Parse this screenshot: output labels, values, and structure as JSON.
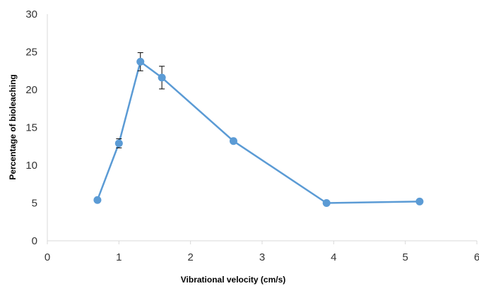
{
  "chart_data": {
    "type": "scatter",
    "title": "",
    "xlabel": "Vibrational velocity (cm/s)",
    "ylabel": "Percentage of bioleaching",
    "xlim": [
      0,
      6
    ],
    "ylim": [
      0,
      30
    ],
    "x_ticks": [
      0,
      1,
      2,
      3,
      4,
      5,
      6
    ],
    "y_ticks": [
      0,
      5,
      10,
      15,
      20,
      25,
      30
    ],
    "x_tick_labels": [
      "0",
      "1",
      "2",
      "3",
      "4",
      "5",
      "6"
    ],
    "y_tick_labels": [
      "0",
      "5",
      "10",
      "15",
      "20",
      "25",
      "30"
    ],
    "grid": false,
    "legend": "none",
    "connect_points": true,
    "series_color": "#5b9bd5",
    "error_bar_color": "#000000",
    "axis_color": "#d9d9d9",
    "series": [
      {
        "x": [
          0.7,
          1.0,
          1.3,
          1.6,
          2.6,
          3.9,
          5.2
        ],
        "y": [
          5.4,
          12.9,
          23.7,
          21.6,
          13.2,
          5.0,
          5.2
        ],
        "error": [
          0,
          0.6,
          1.2,
          1.5,
          0,
          0,
          0
        ]
      }
    ]
  }
}
